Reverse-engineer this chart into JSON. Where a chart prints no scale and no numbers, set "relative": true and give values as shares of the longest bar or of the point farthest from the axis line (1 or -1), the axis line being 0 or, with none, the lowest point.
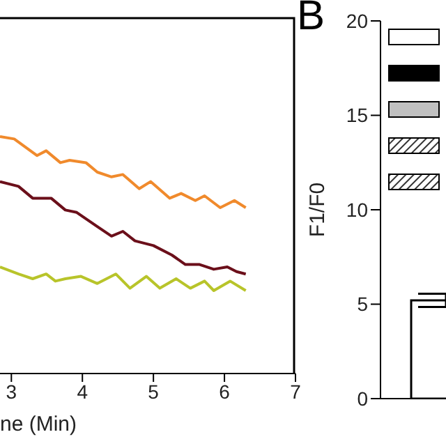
{
  "chart_data": [
    {
      "type": "line",
      "relative": true,
      "xlabel": "ne (Min)",
      "xlim": [
        2.84,
        7
      ],
      "xticks": [
        3,
        4,
        5,
        6,
        7
      ],
      "tick_labels": "x",
      "marker": "none",
      "line_style": "solid",
      "series": [
        {
          "color": "#f08a2c",
          "x": [
            2.84,
            3.04,
            3.36,
            3.49,
            3.69,
            3.82,
            4.05,
            4.21,
            4.41,
            4.57,
            4.8,
            4.96,
            5.23,
            5.39,
            5.59,
            5.72,
            5.94,
            6.14,
            6.3
          ],
          "values": [
            1.0,
            0.99,
            0.92,
            0.94,
            0.89,
            0.9,
            0.89,
            0.85,
            0.83,
            0.84,
            0.78,
            0.81,
            0.74,
            0.76,
            0.73,
            0.75,
            0.7,
            0.73,
            0.7
          ]
        },
        {
          "color": "#6b0f1a",
          "x": [
            2.84,
            3.1,
            3.3,
            3.56,
            3.76,
            3.92,
            4.21,
            4.41,
            4.57,
            4.74,
            5.0,
            5.26,
            5.45,
            5.65,
            5.85,
            6.04,
            6.17,
            6.3
          ],
          "values": [
            0.81,
            0.79,
            0.74,
            0.74,
            0.69,
            0.68,
            0.62,
            0.58,
            0.6,
            0.56,
            0.54,
            0.5,
            0.46,
            0.46,
            0.44,
            0.45,
            0.43,
            0.42
          ]
        },
        {
          "color": "#b8c42a",
          "x": [
            2.84,
            3.1,
            3.3,
            3.49,
            3.62,
            3.76,
            3.98,
            4.21,
            4.47,
            4.67,
            4.9,
            5.09,
            5.32,
            5.52,
            5.72,
            5.85,
            6.08,
            6.3
          ],
          "values": [
            0.45,
            0.42,
            0.4,
            0.42,
            0.39,
            0.4,
            0.41,
            0.38,
            0.42,
            0.36,
            0.41,
            0.36,
            0.4,
            0.36,
            0.39,
            0.35,
            0.39,
            0.35
          ]
        }
      ]
    },
    {
      "type": "bar",
      "title": "B",
      "ylabel": "F1/F0",
      "categories": [
        null
      ],
      "values": [
        5.2
      ],
      "errors": [
        0.35
      ],
      "color": "#ffffff",
      "ylim": [
        0,
        20
      ],
      "yticks": [
        0,
        5,
        10,
        15,
        20
      ]
    }
  ]
}
